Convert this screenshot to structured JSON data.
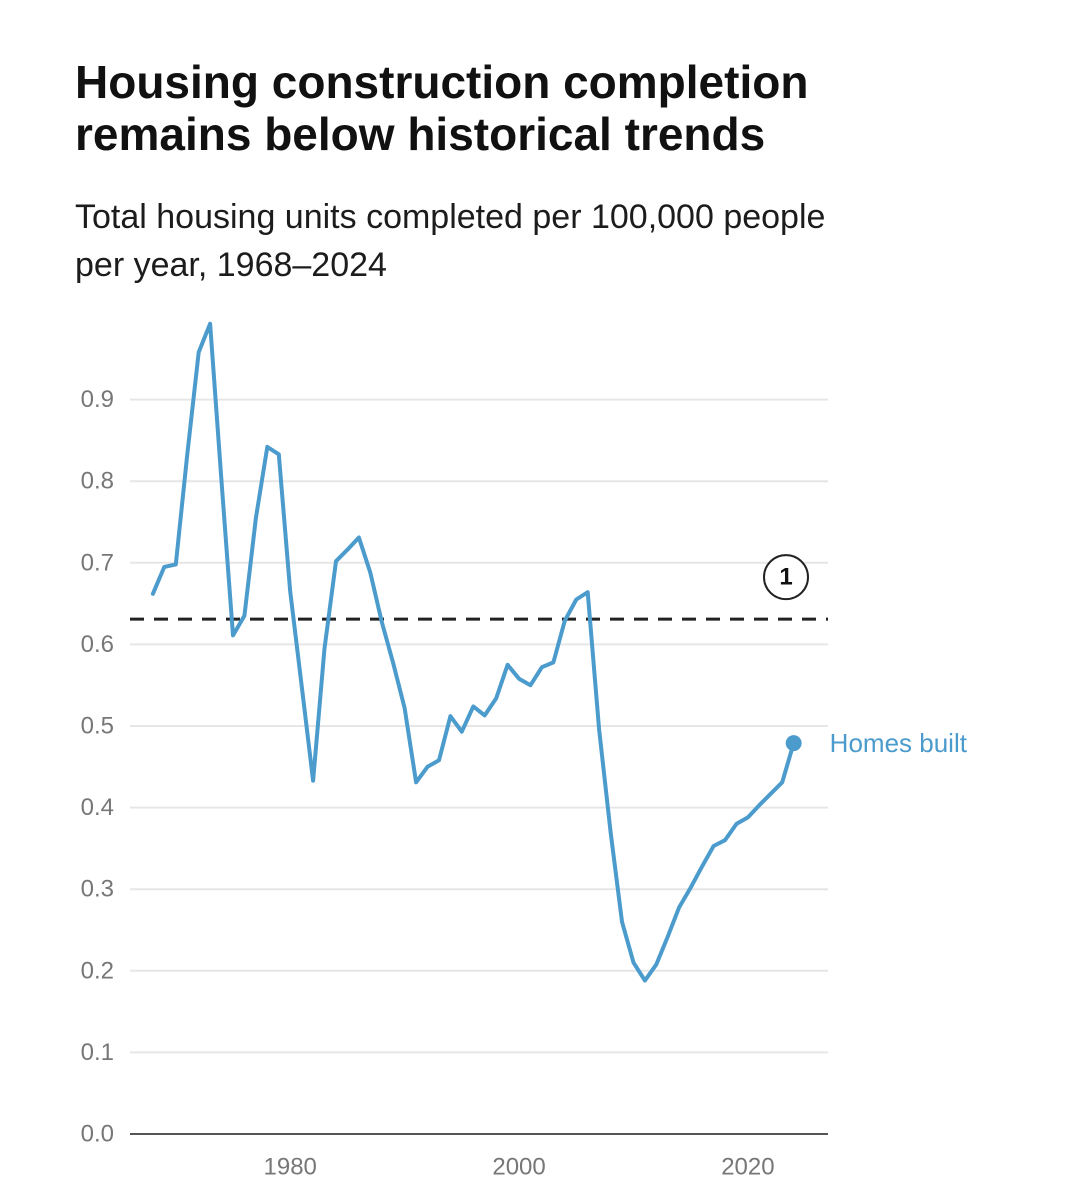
{
  "title": {
    "line1": "Housing construction completion",
    "line2": "remains below historical trends"
  },
  "subtitle": {
    "line1": "Total housing units completed per 100,000 people",
    "line2": "per year, 1968–2024"
  },
  "colors": {
    "series": "#4b9bcd",
    "reference_line": "#222222",
    "gridline": "#e6e6e6",
    "axis": "#555555",
    "tick_text": "#777777"
  },
  "chart_data": {
    "type": "line",
    "title": "Housing construction completion remains below historical trends",
    "subtitle": "Total housing units completed per 100,000 people per year, 1968–2024",
    "xlabel": "",
    "ylabel": "",
    "xlim": [
      1966,
      2027
    ],
    "ylim": [
      0,
      1.0
    ],
    "x_ticks": [
      1980,
      2000,
      2020
    ],
    "x_tick_labels": [
      "1980",
      "2000",
      "2020"
    ],
    "y_ticks": [
      0.0,
      0.1,
      0.2,
      0.3,
      0.4,
      0.5,
      0.6,
      0.7,
      0.8,
      0.9
    ],
    "y_tick_labels": [
      "0.0",
      "0.1",
      "0.2",
      "0.3",
      "0.4",
      "0.5",
      "0.6",
      "0.7",
      "0.8",
      "0.9"
    ],
    "grid": true,
    "series": [
      {
        "name": "Homes built",
        "x": [
          1968,
          1969,
          1970,
          1971,
          1972,
          1973,
          1974,
          1975,
          1976,
          1977,
          1978,
          1979,
          1980,
          1981,
          1982,
          1983,
          1984,
          1985,
          1986,
          1987,
          1988,
          1989,
          1990,
          1991,
          1992,
          1993,
          1994,
          1995,
          1996,
          1997,
          1998,
          1999,
          2000,
          2001,
          2002,
          2003,
          2004,
          2005,
          2006,
          2007,
          2008,
          2009,
          2010,
          2011,
          2012,
          2013,
          2014,
          2015,
          2016,
          2017,
          2018,
          2019,
          2020,
          2021,
          2022,
          2023,
          2024
        ],
        "values": [
          0.662,
          0.695,
          0.698,
          0.832,
          0.958,
          0.993,
          0.8,
          0.611,
          0.635,
          0.755,
          0.842,
          0.833,
          0.665,
          0.55,
          0.433,
          0.595,
          0.702,
          0.716,
          0.731,
          0.688,
          0.628,
          0.577,
          0.522,
          0.431,
          0.45,
          0.458,
          0.512,
          0.493,
          0.524,
          0.513,
          0.534,
          0.575,
          0.558,
          0.55,
          0.572,
          0.578,
          0.629,
          0.655,
          0.664,
          0.496,
          0.37,
          0.26,
          0.21,
          0.188,
          0.208,
          0.242,
          0.278,
          0.302,
          0.328,
          0.353,
          0.36,
          0.38,
          0.388,
          0.403,
          0.417,
          0.431,
          0.479
        ]
      }
    ],
    "series_end_label": "Homes built",
    "reference_line": {
      "value": 0.631,
      "style": "dashed",
      "annotation": "1"
    }
  }
}
